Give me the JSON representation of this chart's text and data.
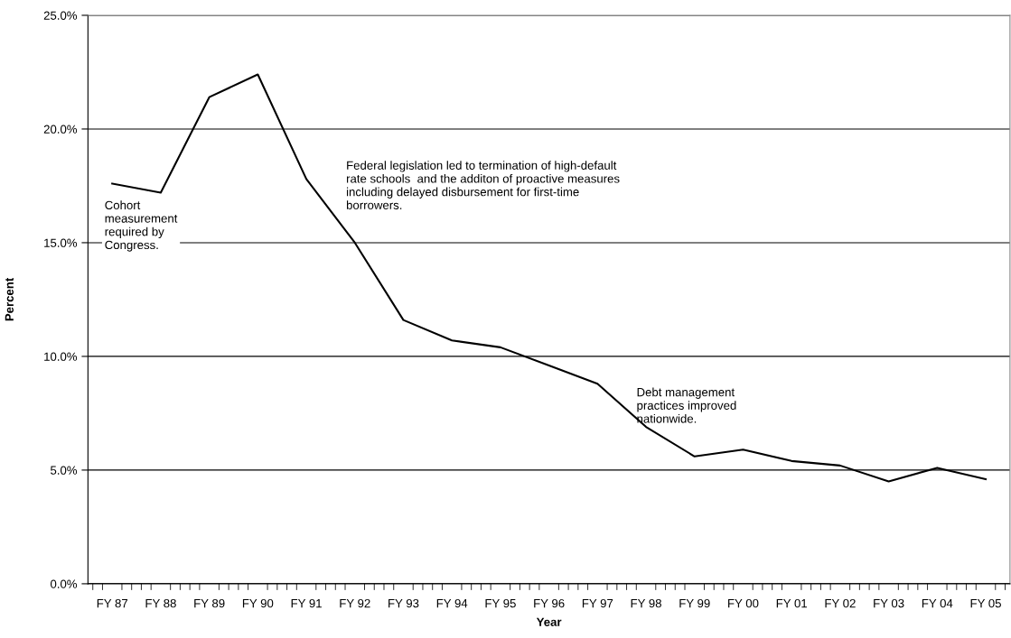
{
  "chart_data": {
    "type": "line",
    "xlabel": "Year",
    "ylabel": "Percent",
    "categories": [
      "FY 87",
      "FY 88",
      "FY 89",
      "FY 90",
      "FY 91",
      "FY 92",
      "FY 93",
      "FY 94",
      "FY 95",
      "FY 96",
      "FY 97",
      "FY 98",
      "FY 99",
      "FY 00",
      "FY 01",
      "FY 02",
      "FY 03",
      "FY 04",
      "FY 05"
    ],
    "series": [
      {
        "color": "#000000",
        "values": [
          17.6,
          17.2,
          21.4,
          22.4,
          17.8,
          15.0,
          11.6,
          10.7,
          10.4,
          9.6,
          8.8,
          6.9,
          5.6,
          5.9,
          5.4,
          5.2,
          4.5,
          5.1,
          4.6
        ]
      }
    ],
    "ylim": [
      0,
      25
    ],
    "yticks": [
      {
        "value": 0,
        "label": "0.0%"
      },
      {
        "value": 5,
        "label": "5.0%"
      },
      {
        "value": 10,
        "label": "10.0%"
      },
      {
        "value": 15,
        "label": "15.0%"
      },
      {
        "value": 20,
        "label": "20.0%"
      },
      {
        "value": 25,
        "label": "25.0%"
      }
    ],
    "grid": "y",
    "marker": "none",
    "line_style": "solid",
    "legend": false,
    "annotations": [
      "Cohort\nmeasurement\nrequired by\nCongress.",
      "Federal legislation led to termination of high-default\nrate schools  and the additon of proactive measures\nincluding delayed disbursement for first-time\nborrowers.",
      "Debt management\npractices improved\nnationwide."
    ]
  }
}
